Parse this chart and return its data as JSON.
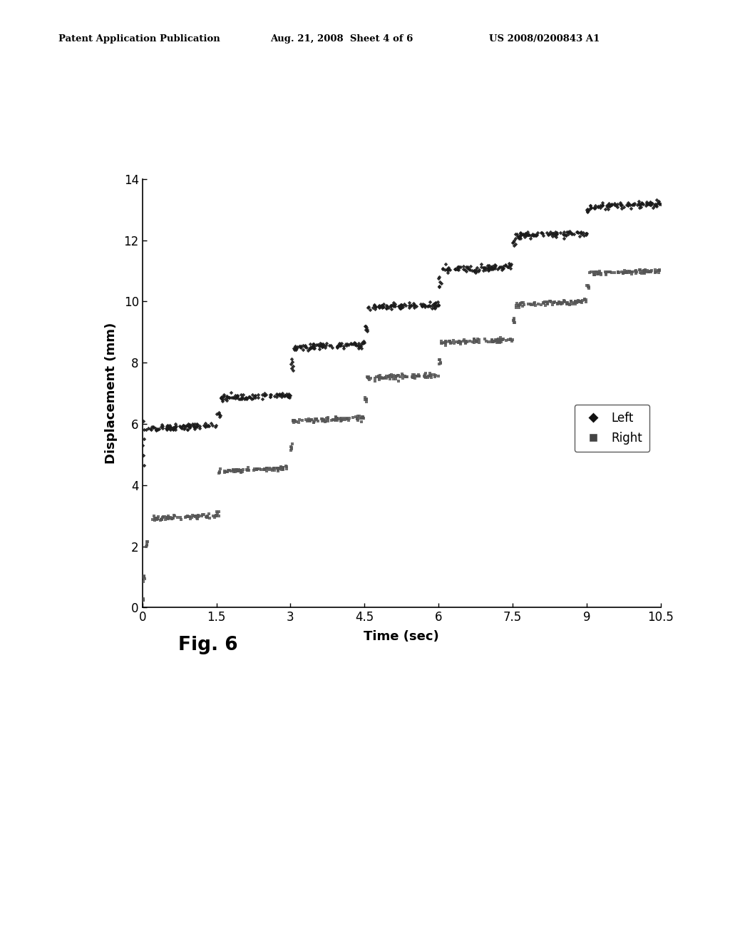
{
  "header_left": "Patent Application Publication",
  "header_center": "Aug. 21, 2008  Sheet 4 of 6",
  "header_right": "US 2008/0200843 A1",
  "xlabel": "Time (sec)",
  "ylabel": "Displacement (mm)",
  "figure_label": "Fig. 6",
  "xlim": [
    0,
    10.5
  ],
  "ylim": [
    0,
    14
  ],
  "xticks": [
    0,
    1.5,
    3,
    4.5,
    6,
    7.5,
    9,
    10.5
  ],
  "yticks": [
    0,
    2,
    4,
    6,
    8,
    10,
    12,
    14
  ],
  "background_color": "#ffffff",
  "left_color": "#1a1a1a",
  "right_color": "#555555",
  "left_plateaus": [
    {
      "x_rise_start": 0.0,
      "x_rise_end": 0.05,
      "y_low": 4.7,
      "y_high": 6.1,
      "x_flat_end": 1.5,
      "y_flat": 5.85
    },
    {
      "x_rise_start": 1.5,
      "x_rise_end": 1.58,
      "y_low": 6.3,
      "y_high": 6.35,
      "x_flat_end": 3.0,
      "y_flat": 6.85
    },
    {
      "x_rise_start": 3.0,
      "x_rise_end": 3.06,
      "y_low": 7.75,
      "y_high": 8.1,
      "x_flat_end": 4.5,
      "y_flat": 8.5
    },
    {
      "x_rise_start": 4.5,
      "x_rise_end": 4.56,
      "y_low": 9.05,
      "y_high": 9.2,
      "x_flat_end": 6.0,
      "y_flat": 9.8
    },
    {
      "x_rise_start": 6.0,
      "x_rise_end": 6.06,
      "y_low": 10.45,
      "y_high": 10.8,
      "x_flat_end": 7.5,
      "y_flat": 11.05
    },
    {
      "x_rise_start": 7.5,
      "x_rise_end": 7.56,
      "y_low": 11.85,
      "y_high": 12.05,
      "x_flat_end": 9.0,
      "y_flat": 12.15
    },
    {
      "x_rise_start": 9.0,
      "x_rise_end": 9.06,
      "y_low": 12.9,
      "y_high": 13.05,
      "x_flat_end": 10.5,
      "y_flat": 13.1
    }
  ],
  "right_plateaus": [
    {
      "x_rise_start": 0.0,
      "x_rise_end": 0.02,
      "y_low": 0.25,
      "y_high": 0.3,
      "x_flat_end": 0.02,
      "y_flat": 0.3
    },
    {
      "x_rise_start": 0.02,
      "x_rise_end": 0.05,
      "y_low": 0.9,
      "y_high": 1.05,
      "x_flat_end": 0.05,
      "y_flat": 1.0
    },
    {
      "x_rise_start": 0.05,
      "x_rise_end": 0.12,
      "y_low": 2.0,
      "y_high": 2.15,
      "x_flat_end": 1.5,
      "y_flat": 2.9
    },
    {
      "x_rise_start": 1.5,
      "x_rise_end": 1.55,
      "y_low": 3.0,
      "y_high": 3.15,
      "x_flat_end": 3.0,
      "y_flat": 4.45
    },
    {
      "x_rise_start": 3.0,
      "x_rise_end": 3.05,
      "y_low": 5.15,
      "y_high": 5.3,
      "x_flat_end": 4.5,
      "y_flat": 6.1
    },
    {
      "x_rise_start": 4.5,
      "x_rise_end": 4.55,
      "y_low": 6.75,
      "y_high": 6.85,
      "x_flat_end": 6.0,
      "y_flat": 7.5
    },
    {
      "x_rise_start": 6.0,
      "x_rise_end": 6.05,
      "y_low": 7.95,
      "y_high": 8.1,
      "x_flat_end": 7.5,
      "y_flat": 8.65
    },
    {
      "x_rise_start": 7.5,
      "x_rise_end": 7.55,
      "y_low": 9.3,
      "y_high": 9.45,
      "x_flat_end": 9.0,
      "y_flat": 9.9
    },
    {
      "x_rise_start": 9.0,
      "x_rise_end": 9.05,
      "y_low": 10.45,
      "y_high": 10.55,
      "x_flat_end": 10.5,
      "y_flat": 10.9
    }
  ]
}
